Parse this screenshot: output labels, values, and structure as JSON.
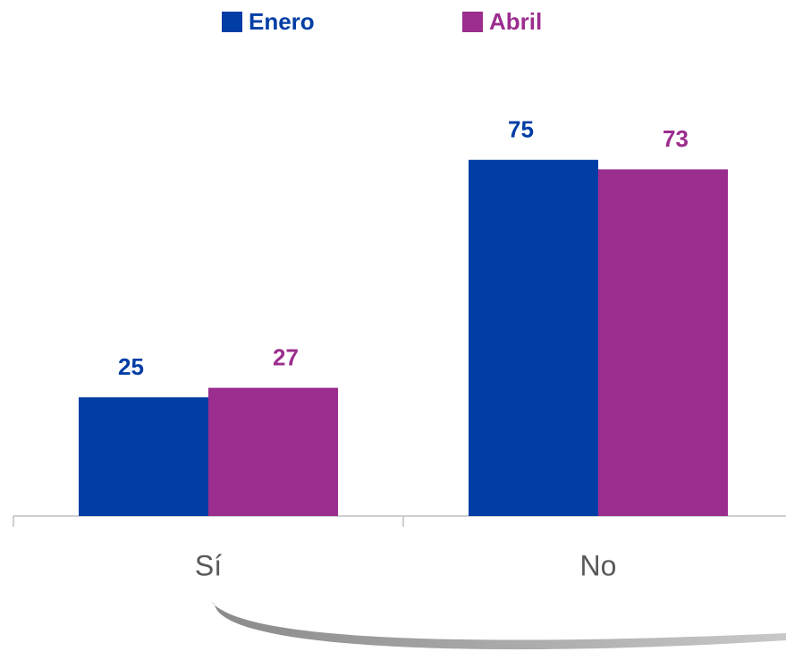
{
  "chart_data": {
    "type": "bar",
    "categories": [
      "Sí",
      "No"
    ],
    "series": [
      {
        "name": "Enero",
        "color": "#003da5",
        "values": [
          25,
          75
        ]
      },
      {
        "name": "Abril",
        "color": "#9b2d8e",
        "values": [
          27,
          73
        ]
      }
    ],
    "ylim": [
      0,
      100
    ],
    "legend": "top"
  }
}
